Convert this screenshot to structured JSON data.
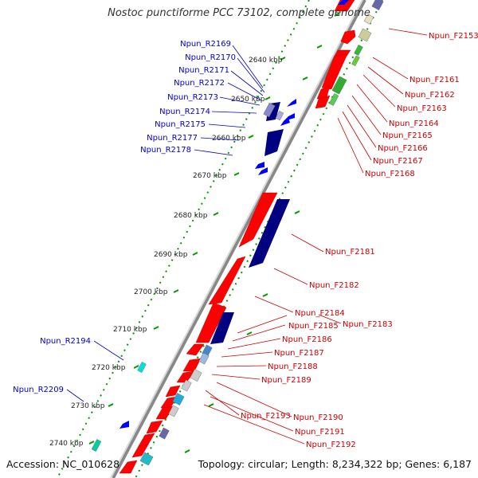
{
  "title": "Nostoc punctiforme PCC 73102, complete genome",
  "accession_text": "Accession: NC_010628",
  "summary_text": "Topology: circular; Length: 8,234,322 bp; Genes: 6,187",
  "colors": {
    "forward": "#ff0000",
    "reverse_rna": "#0000cc",
    "forward_rna": "#00aa00",
    "tick": "#009900",
    "backbone": "#999999",
    "label_reverse": "#0000cc",
    "label_forward": "#cc0000"
  },
  "scale_labels": [
    "2640 kbp",
    "2650 kbp",
    "2660 kbp",
    "2670 kbp",
    "2680 kbp",
    "2690 kbp",
    "2700 kbp",
    "2710 kbp",
    "2720 kbp",
    "2730 kbp",
    "2740 kbp"
  ],
  "labels_reverse": [
    "Npun_R2169",
    "Npun_R2170",
    "Npun_R2171",
    "Npun_R2172",
    "Npun_R2173",
    "Npun_R2174",
    "Npun_R2175",
    "Npun_R2177",
    "Npun_R2178",
    "Npun_R2194",
    "Npun_R2209"
  ],
  "labels_forward": [
    "Npun_F2153",
    "Npun_F2161",
    "Npun_F2162",
    "Npun_F2163",
    "Npun_F2164",
    "Npun_F2165",
    "Npun_F2166",
    "Npun_F2167",
    "Npun_F2168",
    "Npun_F2181",
    "Npun_F2182",
    "Npun_F2184",
    "Npun_F2183",
    "Npun_F2185",
    "Npun_F2186",
    "Npun_F2187",
    "Npun_F2188",
    "Npun_F2189",
    "Npun_F2193",
    "Npun_F2190",
    "Npun_F2191",
    "Npun_F2192"
  ]
}
